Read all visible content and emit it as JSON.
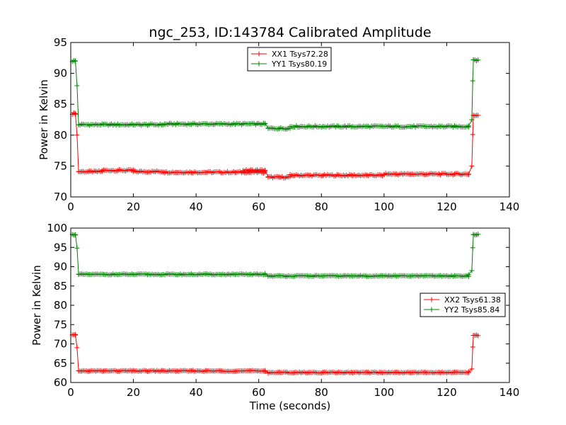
{
  "chart_data": [
    {
      "type": "line",
      "title": "ngc_253, ID:143784 Calibrated Amplitude",
      "xlabel": "",
      "ylabel": "Power in Kelvin",
      "xlim": [
        0,
        140
      ],
      "ylim": [
        70,
        95
      ],
      "xticks": [
        0,
        20,
        40,
        60,
        80,
        100,
        120,
        140
      ],
      "yticks": [
        70,
        75,
        80,
        85,
        90,
        95
      ],
      "legend_position": "top-center",
      "series": [
        {
          "name": "XX1 Tsys72.28",
          "color": "#ff0000",
          "segments": [
            {
              "x_start": 0.5,
              "x_end": 1.5,
              "value": 83.5
            },
            {
              "x_start": 2.5,
              "x_end": 10,
              "value": 74.1
            },
            {
              "x_start": 10,
              "x_end": 20,
              "value": 74.3
            },
            {
              "x_start": 20,
              "x_end": 30,
              "value": 74.1
            },
            {
              "x_start": 30,
              "x_end": 62,
              "value": 74.0
            },
            {
              "x_start": 55,
              "x_end": 62,
              "value": 74.3
            },
            {
              "x_start": 63,
              "x_end": 70,
              "value": 73.2
            },
            {
              "x_start": 70,
              "x_end": 100,
              "value": 73.5
            },
            {
              "x_start": 100,
              "x_end": 127,
              "value": 73.7
            },
            {
              "x_start": 128.5,
              "x_end": 130,
              "value": 83.2
            }
          ],
          "transitions": [
            [
              1.5,
              83.5,
              2.5,
              74.1
            ],
            [
              62,
              74.3,
              63,
              73.2
            ],
            [
              127,
              73.7,
              128.5,
              83.2
            ]
          ],
          "extra_points": [
            [
              2,
              80.0
            ],
            [
              128,
              75.0
            ],
            [
              128.3,
              80.1
            ]
          ]
        },
        {
          "name": "YY1 Tsys80.19",
          "color": "#008000",
          "segments": [
            {
              "x_start": 0.5,
              "x_end": 1.5,
              "value": 92.0
            },
            {
              "x_start": 2.5,
              "x_end": 30,
              "value": 81.7
            },
            {
              "x_start": 30,
              "x_end": 62,
              "value": 81.8
            },
            {
              "x_start": 63,
              "x_end": 70,
              "value": 81.1
            },
            {
              "x_start": 70,
              "x_end": 127,
              "value": 81.4
            },
            {
              "x_start": 128.5,
              "x_end": 130,
              "value": 92.2
            }
          ],
          "transitions": [
            [
              1.5,
              92.0,
              2.5,
              81.7
            ],
            [
              62,
              81.9,
              63,
              81.1
            ],
            [
              127,
              81.5,
              128.5,
              92.2
            ]
          ],
          "extra_points": [
            [
              2,
              88.0
            ],
            [
              128,
              82.5
            ],
            [
              128.3,
              88.8
            ]
          ]
        }
      ]
    },
    {
      "type": "line",
      "title": "",
      "xlabel": "Time (seconds)",
      "ylabel": "Power in Kelvin",
      "xlim": [
        0,
        140
      ],
      "ylim": [
        60,
        100
      ],
      "xticks": [
        0,
        20,
        40,
        60,
        80,
        100,
        120,
        140
      ],
      "yticks": [
        60,
        65,
        70,
        75,
        80,
        85,
        90,
        95,
        100
      ],
      "legend_position": "right",
      "series": [
        {
          "name": "XX2 Tsys61.38",
          "color": "#ff0000",
          "segments": [
            {
              "x_start": 0.5,
              "x_end": 1.5,
              "value": 72.3
            },
            {
              "x_start": 2.5,
              "x_end": 62,
              "value": 63.0
            },
            {
              "x_start": 63,
              "x_end": 127,
              "value": 62.6
            },
            {
              "x_start": 128.5,
              "x_end": 130,
              "value": 72.2
            }
          ],
          "transitions": [
            [
              1.5,
              72.3,
              2.5,
              63.0
            ],
            [
              62,
              63.1,
              63,
              62.4
            ],
            [
              127,
              62.8,
              128.5,
              72.2
            ]
          ],
          "extra_points": [
            [
              2,
              69.0
            ],
            [
              128,
              63.5
            ],
            [
              128.3,
              69.2
            ]
          ]
        },
        {
          "name": "YY2 Tsys85.84",
          "color": "#008000",
          "segments": [
            {
              "x_start": 0.5,
              "x_end": 1.5,
              "value": 98.3
            },
            {
              "x_start": 2.5,
              "x_end": 62,
              "value": 88.0
            },
            {
              "x_start": 63,
              "x_end": 127,
              "value": 87.6
            },
            {
              "x_start": 128.5,
              "x_end": 130,
              "value": 98.3
            }
          ],
          "transitions": [
            [
              1.5,
              98.3,
              2.5,
              88.0
            ],
            [
              62,
              88.2,
              63,
              87.5
            ],
            [
              127,
              87.9,
              128.5,
              98.3
            ]
          ],
          "extra_points": [
            [
              2,
              94.8
            ],
            [
              128,
              89.0
            ],
            [
              128.3,
              94.9
            ]
          ]
        }
      ]
    }
  ]
}
